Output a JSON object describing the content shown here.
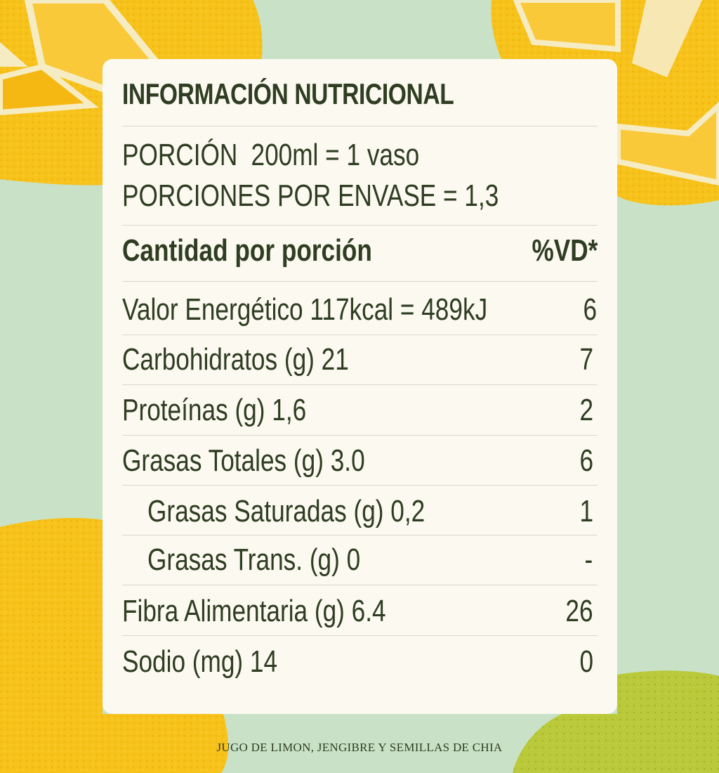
{
  "panel": {
    "title": "INFORMACIÓN NUTRICIONAL",
    "serving_label": "PORCIÓN",
    "serving_value": "200ml = 1 vaso",
    "servings_per_container": "PORCIONES POR ENVASE = 1,3",
    "header_amount": "Cantidad por porción",
    "header_dv": "%VD*",
    "rows": [
      {
        "name": "Valor Energético 117kcal = 489kJ",
        "dv": "6"
      },
      {
        "name": "Carbohidratos (g) 21",
        "dv": "7"
      },
      {
        "name": "Proteínas (g) 1,6",
        "dv": "2"
      },
      {
        "name": "Grasas Totales (g) 3.0",
        "dv": "6"
      },
      {
        "name": "Grasas Saturadas (g) 0,2",
        "dv": "1"
      },
      {
        "name": "Grasas Trans. (g) 0",
        "dv": "-"
      },
      {
        "name": "Fibra Alimentaria (g) 6.4",
        "dv": "26"
      },
      {
        "name": "Sodio (mg) 14",
        "dv": "0"
      }
    ]
  },
  "footer": {
    "product_name": "JUGO DE LIMON, JENGIBRE Y SEMILLAS DE CHIA"
  },
  "colors": {
    "background": "#c9e2c7",
    "panel": "#fbf9f0",
    "text": "#2f3d22",
    "lemon": "#f7c21a",
    "lime": "#b9c93a"
  }
}
